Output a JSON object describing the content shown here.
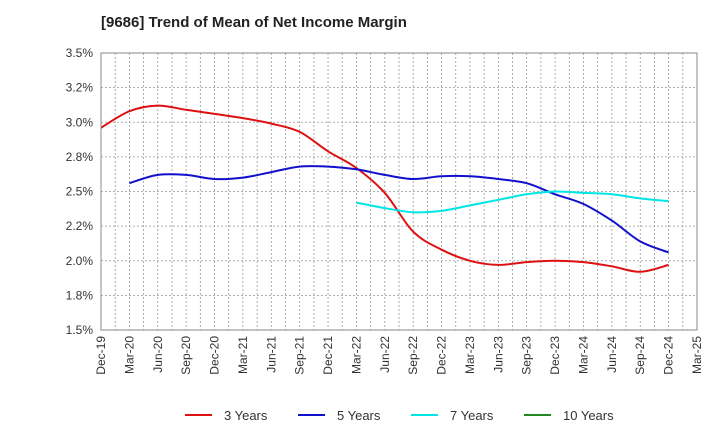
{
  "chart_data": {
    "type": "line",
    "title": "[9686]  Trend of Mean of Net Income Margin",
    "xlabel": "",
    "ylabel": "",
    "x_ticks": [
      "Dec-19",
      "Mar-20",
      "Jun-20",
      "Sep-20",
      "Dec-20",
      "Mar-21",
      "Jun-21",
      "Sep-21",
      "Dec-21",
      "Mar-22",
      "Jun-22",
      "Sep-22",
      "Dec-22",
      "Mar-23",
      "Jun-23",
      "Sep-23",
      "Dec-23",
      "Mar-24",
      "Jun-24",
      "Sep-24",
      "Dec-24",
      "Mar-25"
    ],
    "y_ticks": [
      "1.5%",
      "1.8%",
      "2.0%",
      "2.2%",
      "2.5%",
      "2.8%",
      "3.0%",
      "3.2%",
      "3.5%"
    ],
    "ylim": [
      1.5,
      3.5
    ],
    "grid": true,
    "legend_position": "bottom",
    "series": [
      {
        "name": "3 Years",
        "color": "#dd1111",
        "values": [
          2.96,
          3.08,
          3.12,
          3.09,
          3.06,
          3.03,
          2.99,
          2.93,
          2.79,
          2.67,
          2.49,
          2.21,
          2.08,
          2.0,
          1.97,
          1.99,
          2.0,
          1.99,
          1.96,
          1.92,
          1.97,
          null
        ]
      },
      {
        "name": "5 Years",
        "color": "#1111cc",
        "values": [
          null,
          2.56,
          2.62,
          2.62,
          2.59,
          2.6,
          2.64,
          2.68,
          2.68,
          2.66,
          2.62,
          2.59,
          2.61,
          2.61,
          2.59,
          2.56,
          2.48,
          2.41,
          2.29,
          2.14,
          2.06,
          null
        ]
      },
      {
        "name": "7 Years",
        "color": "#00e5e5",
        "values": [
          null,
          null,
          null,
          null,
          null,
          null,
          null,
          null,
          null,
          2.42,
          2.38,
          2.35,
          2.36,
          2.4,
          2.44,
          2.48,
          2.5,
          2.49,
          2.48,
          2.45,
          2.43,
          null
        ]
      },
      {
        "name": "10 Years",
        "color": "#228822",
        "values": [
          null,
          null,
          null,
          null,
          null,
          null,
          null,
          null,
          null,
          null,
          null,
          null,
          null,
          null,
          null,
          null,
          null,
          null,
          null,
          null,
          null,
          null
        ]
      }
    ]
  }
}
